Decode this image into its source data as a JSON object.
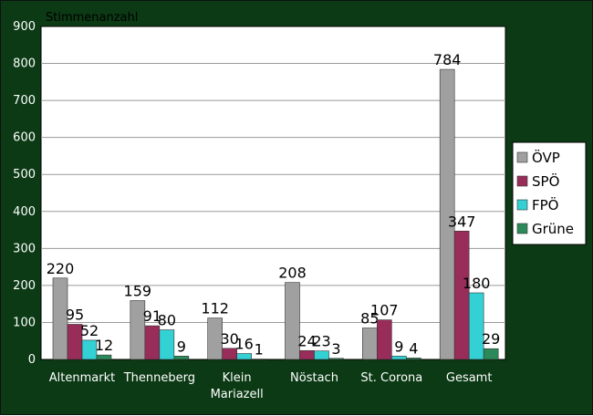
{
  "chart_data": {
    "type": "bar",
    "title": "Stimmenanzahl",
    "xlabel": "",
    "ylabel": "Stimmenanzahl",
    "ylim": [
      0,
      900
    ],
    "yticks": [
      0,
      100,
      200,
      300,
      400,
      500,
      600,
      700,
      800,
      900
    ],
    "grid": true,
    "legend_position": "right",
    "categories": [
      [
        "Altenmarkt"
      ],
      [
        "Thenneberg"
      ],
      [
        "Klein",
        "Mariazell"
      ],
      [
        "Nöstach"
      ],
      [
        "St. Corona"
      ],
      [
        "Gesamt"
      ]
    ],
    "series": [
      {
        "name": "ÖVP",
        "color": "#a0a0a0",
        "values": [
          220,
          159,
          112,
          208,
          85,
          784
        ]
      },
      {
        "name": "SPÖ",
        "color": "#992d5a",
        "values": [
          95,
          91,
          30,
          24,
          107,
          347
        ]
      },
      {
        "name": "FPÖ",
        "color": "#33d0d4",
        "values": [
          52,
          80,
          16,
          23,
          9,
          180
        ]
      },
      {
        "name": "Grüne",
        "color": "#2c8a5a",
        "values": [
          12,
          9,
          1,
          3,
          4,
          29
        ]
      }
    ]
  },
  "colors": {
    "frame": "#0b3a14",
    "plot_bg": "#ffffff",
    "grid": "#9a9a9a"
  }
}
